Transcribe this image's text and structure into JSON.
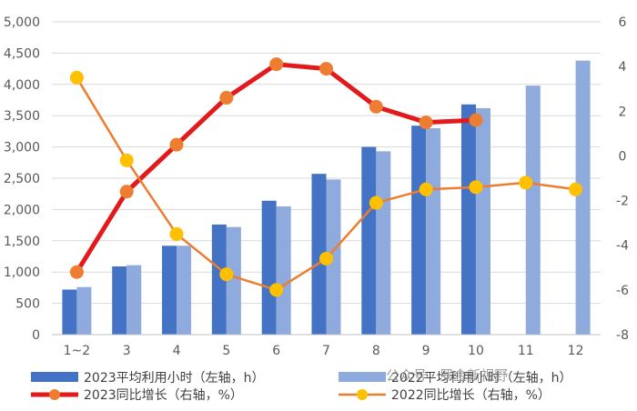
{
  "chart_data": {
    "type": "bar",
    "categories": [
      "1~2",
      "3",
      "4",
      "5",
      "6",
      "7",
      "8",
      "9",
      "10",
      "11",
      "12"
    ],
    "series": [
      {
        "name": "2023平均利用小时（左轴，h）",
        "type": "bar",
        "axis": "left",
        "color": "#4472c4",
        "values": [
          720,
          1090,
          1420,
          1760,
          2140,
          2570,
          3000,
          3340,
          3680,
          null,
          null
        ]
      },
      {
        "name": "2022平均利用小时（左轴，h）",
        "type": "bar",
        "axis": "left",
        "color": "#8faadc",
        "values": [
          760,
          1110,
          1420,
          1720,
          2050,
          2480,
          2930,
          3300,
          3620,
          3980,
          4380
        ]
      },
      {
        "name": "2023同比增长（右轴，%）",
        "type": "line",
        "axis": "right",
        "color": "#e31a1c",
        "marker_color": "#ed7d31",
        "values": [
          -5.2,
          -1.6,
          0.5,
          2.6,
          4.1,
          3.9,
          2.2,
          1.5,
          1.6,
          null,
          null
        ]
      },
      {
        "name": "2022同比增长（右轴，%）",
        "type": "line",
        "axis": "right",
        "color": "#ed7d31",
        "marker_color": "#ffc000",
        "values": [
          3.5,
          -0.2,
          -3.5,
          -5.3,
          -6.0,
          -4.6,
          -2.1,
          -1.5,
          -1.4,
          -1.2,
          -1.5
        ]
      }
    ],
    "y_left": {
      "min": 0,
      "max": 5000,
      "step": 500,
      "tick_labels": [
        "0",
        "500",
        "1,000",
        "1,500",
        "2,000",
        "2,500",
        "3,000",
        "3,500",
        "4,000",
        "4,500",
        "5,000"
      ]
    },
    "y_right": {
      "min": -8,
      "max": 6,
      "step": 2,
      "tick_labels": [
        "-8",
        "-6",
        "-4",
        "-2",
        "0",
        "2",
        "4",
        "6"
      ]
    },
    "grid": true,
    "legend_position": "bottom"
  },
  "watermark": {
    "text": "公众号 · 罗金新视野"
  }
}
